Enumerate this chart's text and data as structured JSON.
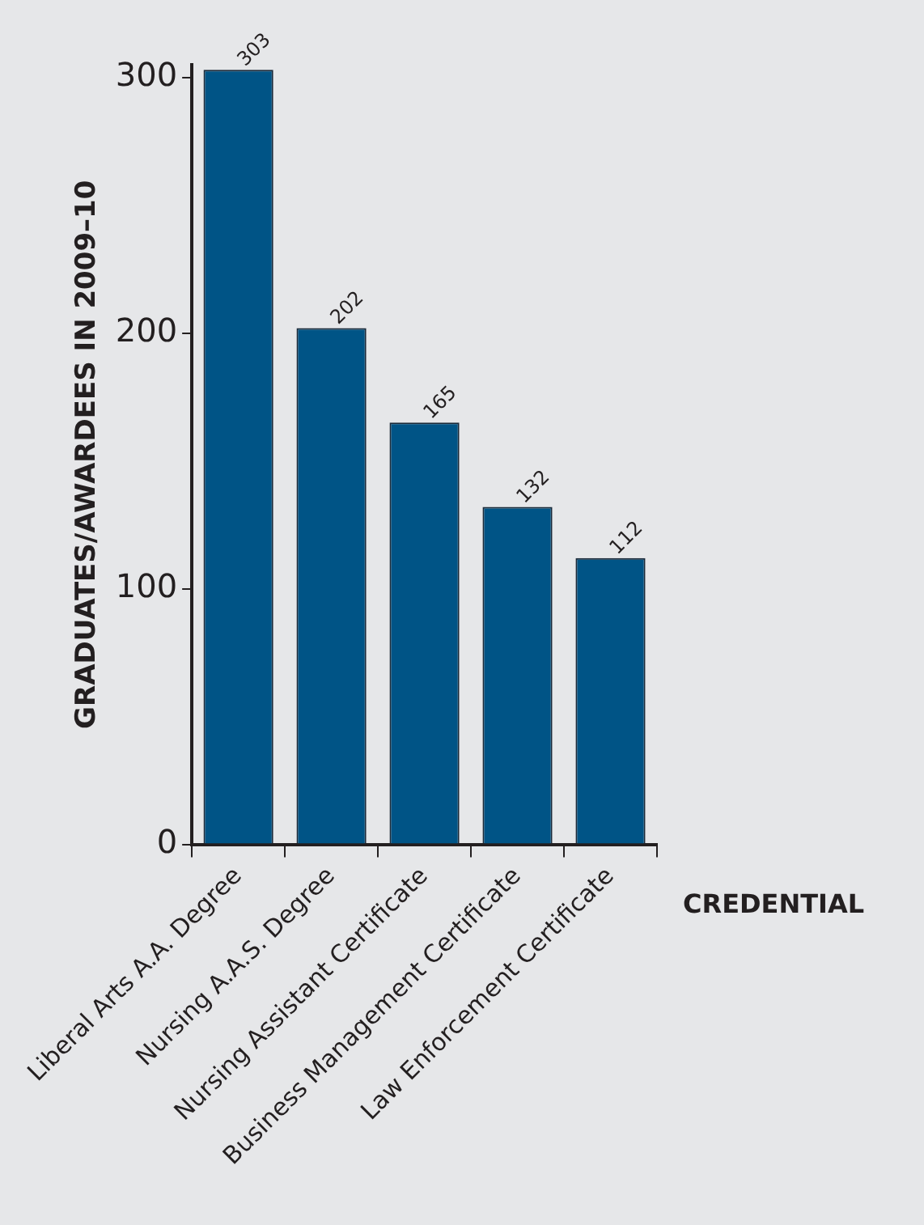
{
  "chart_data": {
    "type": "bar",
    "xlabel": "CREDENTIAL",
    "ylabel": "GRADUATES/AWARDEES IN 2009–10",
    "categories": [
      "Liberal Arts A.A. Degree",
      "Nursing A.A.S. Degree",
      "Nursing Assistant Certificate",
      "Business Management Certificate",
      "Law Enforcement Certificate"
    ],
    "values": [
      303,
      202,
      165,
      132,
      112
    ],
    "color": "#005486",
    "ylim": [
      0,
      305
    ],
    "yticks": [
      0,
      100,
      200,
      300
    ],
    "grid": false,
    "legend": false,
    "data_labels": true
  }
}
